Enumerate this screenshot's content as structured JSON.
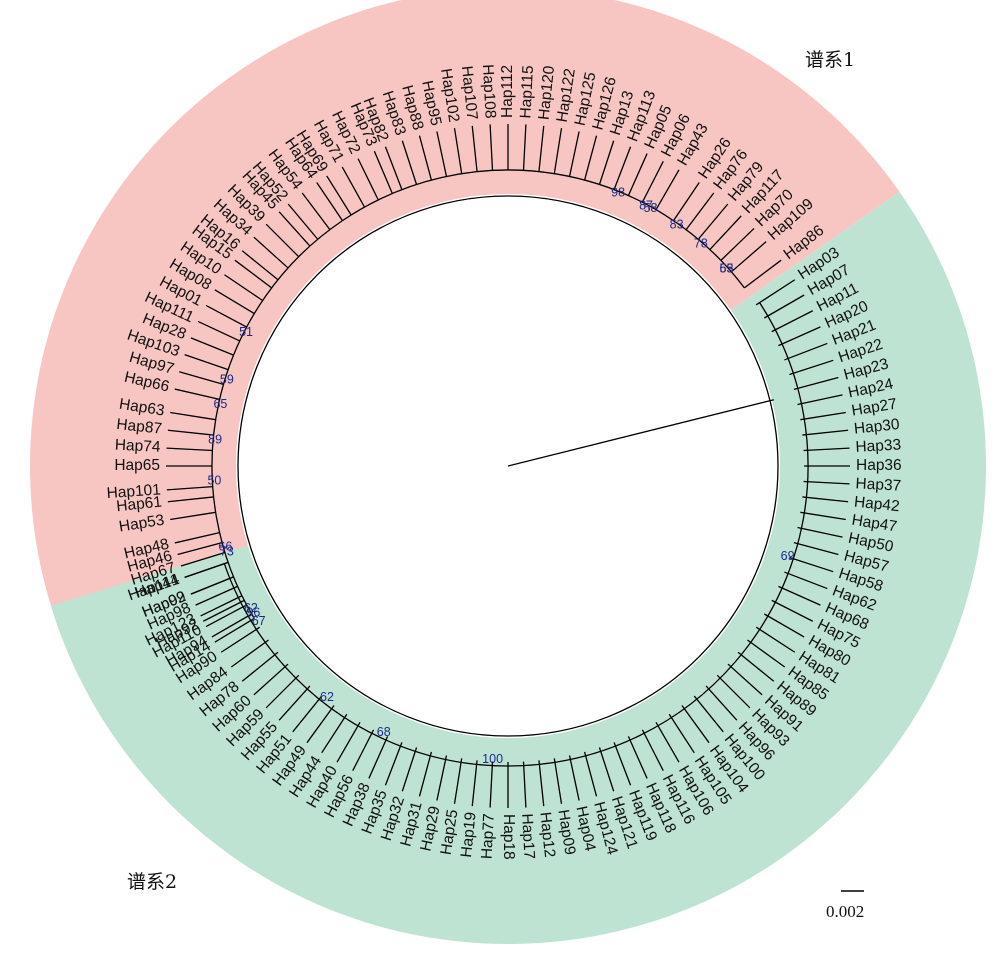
{
  "tree": {
    "lineage_labels": {
      "lineage1": "谱系1",
      "lineage2": "谱系2"
    },
    "lineage_colors": {
      "lineage1": "#f7c6c2",
      "lineage2": "#bfe3d2"
    },
    "scale_bar_label": "0.002",
    "lineage1_tips": [
      {
        "label": "Hap14",
        "angle": 211
      },
      {
        "label": "Hap110",
        "angle": 208
      },
      {
        "label": "Hap123",
        "angle": 206
      },
      {
        "label": "Hap02",
        "angle": 202
      },
      {
        "label": "Hap41",
        "angle": 199
      },
      {
        "label": "Hap67",
        "angle": 197
      },
      {
        "label": "Hap46",
        "angle": 195
      },
      {
        "label": "Hap48",
        "angle": 193
      },
      {
        "label": "Hap53",
        "angle": 189
      },
      {
        "label": "Hap61",
        "angle": 186
      },
      {
        "label": "Hap101",
        "angle": 184
      },
      {
        "label": "Hap65",
        "angle": 180
      },
      {
        "label": "Hap74",
        "angle": 177
      },
      {
        "label": "Hap87",
        "angle": 174
      },
      {
        "label": "Hap63",
        "angle": 171
      },
      {
        "label": "Hap66",
        "angle": 167
      },
      {
        "label": "Hap97",
        "angle": 164
      },
      {
        "label": "Hap103",
        "angle": 161
      },
      {
        "label": "Hap28",
        "angle": 158
      },
      {
        "label": "Hap111",
        "angle": 155
      },
      {
        "label": "Hap01",
        "angle": 152
      },
      {
        "label": "Hap08",
        "angle": 149
      },
      {
        "label": "Hap10",
        "angle": 146
      },
      {
        "label": "Hap15",
        "angle": 143
      },
      {
        "label": "Hap16",
        "angle": 141
      },
      {
        "label": "Hap34",
        "angle": 138
      },
      {
        "label": "Hap39",
        "angle": 135
      },
      {
        "label": "Hap45",
        "angle": 132
      },
      {
        "label": "Hap52",
        "angle": 130
      },
      {
        "label": "Hap54",
        "angle": 127
      },
      {
        "label": "Hap64",
        "angle": 124
      },
      {
        "label": "Hap69",
        "angle": 122
      },
      {
        "label": "Hap71",
        "angle": 119
      },
      {
        "label": "Hap72",
        "angle": 116
      },
      {
        "label": "Hap73",
        "angle": 113
      },
      {
        "label": "Hap82",
        "angle": 111
      },
      {
        "label": "Hap83",
        "angle": 108
      },
      {
        "label": "Hap88",
        "angle": 105
      },
      {
        "label": "Hap95",
        "angle": 102
      },
      {
        "label": "Hap102",
        "angle": 99
      },
      {
        "label": "Hap107",
        "angle": 96
      },
      {
        "label": "Hap108",
        "angle": 93
      },
      {
        "label": "Hap112",
        "angle": 90
      },
      {
        "label": "Hap115",
        "angle": 87
      },
      {
        "label": "Hap120",
        "angle": 84
      },
      {
        "label": "Hap122",
        "angle": 81
      },
      {
        "label": "Hap125",
        "angle": 78
      },
      {
        "label": "Hap126",
        "angle": 75
      },
      {
        "label": "Hap13",
        "angle": 72
      },
      {
        "label": "Hap113",
        "angle": 69
      },
      {
        "label": "Hap05",
        "angle": 66
      },
      {
        "label": "Hap06",
        "angle": 63
      },
      {
        "label": "Hap43",
        "angle": 60
      },
      {
        "label": "Hap26",
        "angle": 56
      },
      {
        "label": "Hap76",
        "angle": 53
      },
      {
        "label": "Hap79",
        "angle": 50
      },
      {
        "label": "Hap117",
        "angle": 47
      },
      {
        "label": "Hap70",
        "angle": 44
      },
      {
        "label": "Hap109",
        "angle": 41
      },
      {
        "label": "Hap86",
        "angle": 37
      }
    ],
    "lineage2_tips": [
      {
        "label": "Hap03",
        "angle": 33
      },
      {
        "label": "Hap07",
        "angle": 30
      },
      {
        "label": "Hap11",
        "angle": 27
      },
      {
        "label": "Hap20",
        "angle": 24
      },
      {
        "label": "Hap21",
        "angle": 21
      },
      {
        "label": "Hap22",
        "angle": 18
      },
      {
        "label": "Hap23",
        "angle": 15
      },
      {
        "label": "Hap24",
        "angle": 12
      },
      {
        "label": "Hap27",
        "angle": 9
      },
      {
        "label": "Hap30",
        "angle": 6
      },
      {
        "label": "Hap33",
        "angle": 3
      },
      {
        "label": "Hap36",
        "angle": 0
      },
      {
        "label": "Hap37",
        "angle": -3
      },
      {
        "label": "Hap42",
        "angle": -6
      },
      {
        "label": "Hap47",
        "angle": -9
      },
      {
        "label": "Hap50",
        "angle": -12
      },
      {
        "label": "Hap57",
        "angle": -15
      },
      {
        "label": "Hap58",
        "angle": -18
      },
      {
        "label": "Hap62",
        "angle": -21
      },
      {
        "label": "Hap68",
        "angle": -24
      },
      {
        "label": "Hap75",
        "angle": -27
      },
      {
        "label": "Hap80",
        "angle": -30
      },
      {
        "label": "Hap81",
        "angle": -33
      },
      {
        "label": "Hap85",
        "angle": -36
      },
      {
        "label": "Hap89",
        "angle": -39
      },
      {
        "label": "Hap91",
        "angle": -42
      },
      {
        "label": "Hap93",
        "angle": -45
      },
      {
        "label": "Hap96",
        "angle": -48
      },
      {
        "label": "Hap100",
        "angle": -51
      },
      {
        "label": "Hap104",
        "angle": -54
      },
      {
        "label": "Hap105",
        "angle": -57
      },
      {
        "label": "Hap106",
        "angle": -60
      },
      {
        "label": "Hap116",
        "angle": -63
      },
      {
        "label": "Hap118",
        "angle": -66
      },
      {
        "label": "Hap119",
        "angle": -69
      },
      {
        "label": "Hap121",
        "angle": -72
      },
      {
        "label": "Hap124",
        "angle": -75
      },
      {
        "label": "Hap04",
        "angle": -78
      },
      {
        "label": "Hap09",
        "angle": -81
      },
      {
        "label": "Hap12",
        "angle": -84
      },
      {
        "label": "Hap17",
        "angle": -87
      },
      {
        "label": "Hap18",
        "angle": -90
      },
      {
        "label": "Hap77",
        "angle": -93
      },
      {
        "label": "Hap19",
        "angle": -96
      },
      {
        "label": "Hap25",
        "angle": -99
      },
      {
        "label": "Hap29",
        "angle": -102
      },
      {
        "label": "Hap31",
        "angle": -105
      },
      {
        "label": "Hap32",
        "angle": -108
      },
      {
        "label": "Hap35",
        "angle": -111
      },
      {
        "label": "Hap38",
        "angle": -114
      },
      {
        "label": "Hap56",
        "angle": -117
      },
      {
        "label": "Hap40",
        "angle": -120
      },
      {
        "label": "Hap44",
        "angle": -123
      },
      {
        "label": "Hap49",
        "angle": -126
      },
      {
        "label": "Hap51",
        "angle": -129
      },
      {
        "label": "Hap55",
        "angle": -132
      },
      {
        "label": "Hap59",
        "angle": -135
      },
      {
        "label": "Hap60",
        "angle": -138
      },
      {
        "label": "Hap78",
        "angle": -141
      },
      {
        "label": "Hap84",
        "angle": -144
      },
      {
        "label": "Hap90",
        "angle": -147
      },
      {
        "label": "Hap94",
        "angle": -150
      },
      {
        "label": "Hap92",
        "angle": -153
      },
      {
        "label": "Hap98",
        "angle": -156
      },
      {
        "label": "Hap99",
        "angle": -158
      },
      {
        "label": "Hap114",
        "angle": -161
      }
    ],
    "bootstrap_values": [
      {
        "value": "50",
        "angle": 183
      },
      {
        "value": "89",
        "angle": 175
      },
      {
        "value": "65",
        "angle": 168
      },
      {
        "value": "59",
        "angle": 163
      },
      {
        "value": "51",
        "angle": 153
      },
      {
        "value": "73",
        "angle": 197
      },
      {
        "value": "66",
        "angle": 196
      },
      {
        "value": "62",
        "angle": 209
      },
      {
        "value": "98",
        "angle": 68
      },
      {
        "value": "87",
        "angle": 62
      },
      {
        "value": "58",
        "angle": 61
      },
      {
        "value": "83",
        "angle": 55
      },
      {
        "value": "78",
        "angle": 49
      },
      {
        "value": "63",
        "angle": 42
      },
      {
        "value": "55",
        "angle": 42
      },
      {
        "value": "69",
        "angle": -18
      },
      {
        "value": "100",
        "angle": -93
      },
      {
        "value": "68",
        "angle": -115
      },
      {
        "value": "62",
        "angle": -128
      },
      {
        "value": "96",
        "angle": -150
      },
      {
        "value": "67",
        "angle": -148
      }
    ]
  }
}
